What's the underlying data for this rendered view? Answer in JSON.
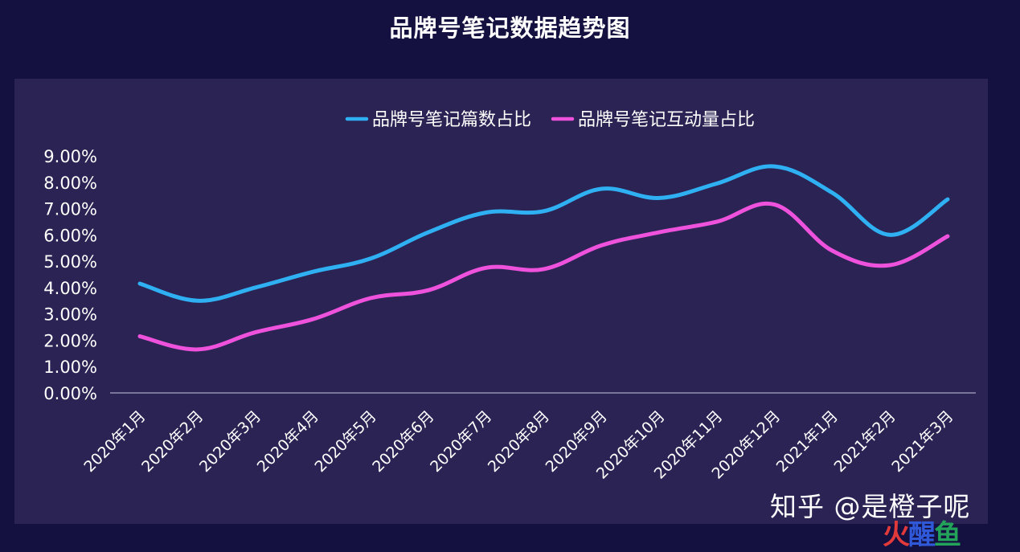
{
  "chart_data": {
    "type": "line",
    "title": "品牌号笔记数据趋势图",
    "xlabel": "",
    "ylabel": "",
    "categories": [
      "2020年1月",
      "2020年2月",
      "2020年3月",
      "2020年4月",
      "2020年5月",
      "2020年6月",
      "2020年7月",
      "2020年8月",
      "2020年9月",
      "2020年10月",
      "2020年11月",
      "2020年12月",
      "2021年1月",
      "2021年2月",
      "2021年3月"
    ],
    "series": [
      {
        "name": "品牌号笔记篇数占比",
        "color": "#2fb0f2",
        "values": [
          4.15,
          3.5,
          4.0,
          4.6,
          5.1,
          6.1,
          6.85,
          6.9,
          7.75,
          7.4,
          7.95,
          8.6,
          7.6,
          6.0,
          7.35
        ]
      },
      {
        "name": "品牌号笔记互动量占比",
        "color": "#ee52dc",
        "values": [
          2.15,
          1.65,
          2.3,
          2.8,
          3.6,
          3.9,
          4.75,
          4.7,
          5.6,
          6.1,
          6.5,
          7.15,
          5.4,
          4.85,
          5.95
        ]
      }
    ],
    "yticks": [
      "0.00%",
      "1.00%",
      "2.00%",
      "3.00%",
      "4.00%",
      "5.00%",
      "6.00%",
      "7.00%",
      "8.00%",
      "9.00%"
    ],
    "ylim": [
      0,
      9
    ],
    "legend_position": "top-center",
    "grid": false
  },
  "watermark": {
    "zhihu": "知乎 @是橙子呢",
    "brand_a": "火",
    "brand_b": "醒",
    "brand_c": "鱼"
  },
  "colors": {
    "background": "#141040",
    "panel": "#2a2354",
    "axis": "#a8a4c4",
    "text": "#ffffff"
  }
}
